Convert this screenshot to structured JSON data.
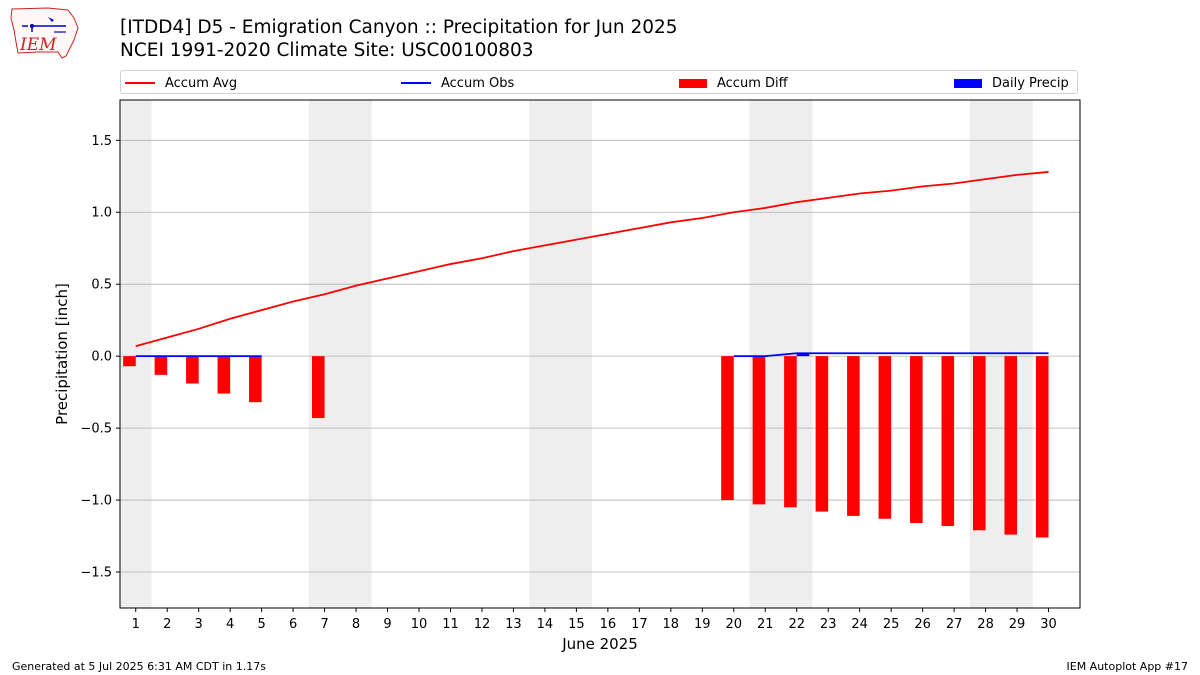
{
  "header": {
    "title_line1": "[ITDD4] D5 - Emigration Canyon  :: Precipitation for Jun 2025",
    "title_line2": "NCEI 1991-2020 Climate Site: USC00100803",
    "logo_text": "IEM"
  },
  "legend": [
    {
      "label": "Accum Avg",
      "kind": "line",
      "color": "#ff0000"
    },
    {
      "label": "Accum Obs",
      "kind": "line",
      "color": "#0000ff"
    },
    {
      "label": "Accum Diff",
      "kind": "box",
      "color": "#ff0000"
    },
    {
      "label": "Daily Precip",
      "kind": "box",
      "color": "#0000ff"
    }
  ],
  "footer": {
    "generated": "Generated at 5 Jul 2025 6:31 AM CDT in 1.17s",
    "app": "IEM Autoplot App #17"
  },
  "chart_data": {
    "type": "bar",
    "xlabel": "June 2025",
    "ylabel": "Precipitation [inch]",
    "xlim": [
      0.5,
      31.0
    ],
    "ylim": [
      -1.75,
      1.78
    ],
    "yticks": [
      1.5,
      1.0,
      0.5,
      0.0,
      -0.5,
      -1.0,
      -1.5
    ],
    "ytick_labels": [
      "1.5",
      "1.0",
      "0.5",
      "0.0",
      "−0.5",
      "−1.0",
      "−1.5"
    ],
    "days": [
      1,
      2,
      3,
      4,
      5,
      6,
      7,
      8,
      9,
      10,
      11,
      12,
      13,
      14,
      15,
      16,
      17,
      18,
      19,
      20,
      21,
      22,
      23,
      24,
      25,
      26,
      27,
      28,
      29,
      30
    ],
    "weekend_shading": [
      [
        0.5,
        1.5
      ],
      [
        6.5,
        8.5
      ],
      [
        13.5,
        15.5
      ],
      [
        20.5,
        22.5
      ],
      [
        27.5,
        29.5
      ]
    ],
    "grid": true,
    "accum_avg": [
      0.07,
      0.13,
      0.19,
      0.26,
      0.32,
      0.38,
      0.43,
      0.49,
      0.54,
      0.59,
      0.64,
      0.68,
      0.73,
      0.77,
      0.81,
      0.85,
      0.89,
      0.93,
      0.96,
      1.0,
      1.03,
      1.07,
      1.1,
      1.13,
      1.15,
      1.18,
      1.2,
      1.23,
      1.26,
      1.28
    ],
    "accum_obs": [
      {
        "days": [
          1,
          2,
          3,
          4,
          5
        ],
        "values": [
          0,
          0,
          0,
          0,
          0
        ]
      },
      {
        "days": [
          20,
          21,
          22,
          23,
          24,
          25,
          26,
          27,
          28,
          29,
          30
        ],
        "values": [
          0,
          0,
          0.02,
          0.02,
          0.02,
          0.02,
          0.02,
          0.02,
          0.02,
          0.02,
          0.02
        ]
      }
    ],
    "accum_diff": [
      {
        "day": 1,
        "value": -0.07
      },
      {
        "day": 2,
        "value": -0.13
      },
      {
        "day": 3,
        "value": -0.19
      },
      {
        "day": 4,
        "value": -0.26
      },
      {
        "day": 5,
        "value": -0.32
      },
      {
        "day": 7,
        "value": -0.43
      },
      {
        "day": 20,
        "value": -1.0
      },
      {
        "day": 21,
        "value": -1.03
      },
      {
        "day": 22,
        "value": -1.05
      },
      {
        "day": 23,
        "value": -1.08
      },
      {
        "day": 24,
        "value": -1.11
      },
      {
        "day": 25,
        "value": -1.13
      },
      {
        "day": 26,
        "value": -1.16
      },
      {
        "day": 27,
        "value": -1.18
      },
      {
        "day": 28,
        "value": -1.21
      },
      {
        "day": 29,
        "value": -1.24
      },
      {
        "day": 30,
        "value": -1.26
      }
    ],
    "daily_precip": [
      {
        "day": 22,
        "value": 0.02
      }
    ]
  }
}
